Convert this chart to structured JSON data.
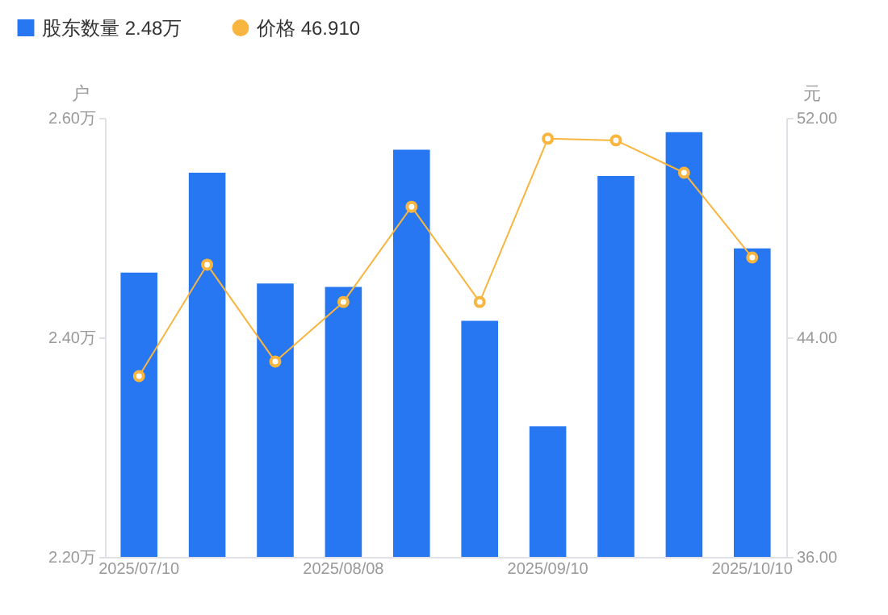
{
  "chart_data": {
    "type": "bar",
    "categories": [
      "2025/07/10",
      null,
      null,
      "2025/08/08",
      null,
      null,
      "2025/09/10",
      null,
      null,
      "2025/10/10"
    ],
    "ylabel": "户",
    "y2label": "元",
    "series": [
      {
        "name": "股东数量  2.48万",
        "color": "#2777f2",
        "values": [
          2.459,
          2.55,
          2.449,
          2.446,
          2.571,
          2.415,
          2.319,
          2.547,
          2.587,
          2.481
        ]
      },
      {
        "name": "价格  46.910",
        "type": "line",
        "axis": "y2",
        "color": "#f8b53f",
        "values": [
          42.59,
          46.65,
          43.12,
          45.29,
          48.76,
          45.29,
          51.24,
          51.18,
          50.0,
          46.91
        ]
      }
    ],
    "ylim": [
      2.2,
      2.6
    ],
    "yticks": [
      {
        "value": 2.2,
        "label": "2.20万"
      },
      {
        "value": 2.4,
        "label": "2.40万"
      },
      {
        "value": 2.6,
        "label": "2.60万"
      }
    ],
    "y2lim": [
      36,
      52
    ],
    "y2ticks": [
      {
        "value": 36,
        "label": "36.00"
      },
      {
        "value": 44,
        "label": "44.00"
      },
      {
        "value": 52,
        "label": "52.00"
      }
    ],
    "marker": "circle",
    "grid": false,
    "legend": "top left"
  }
}
